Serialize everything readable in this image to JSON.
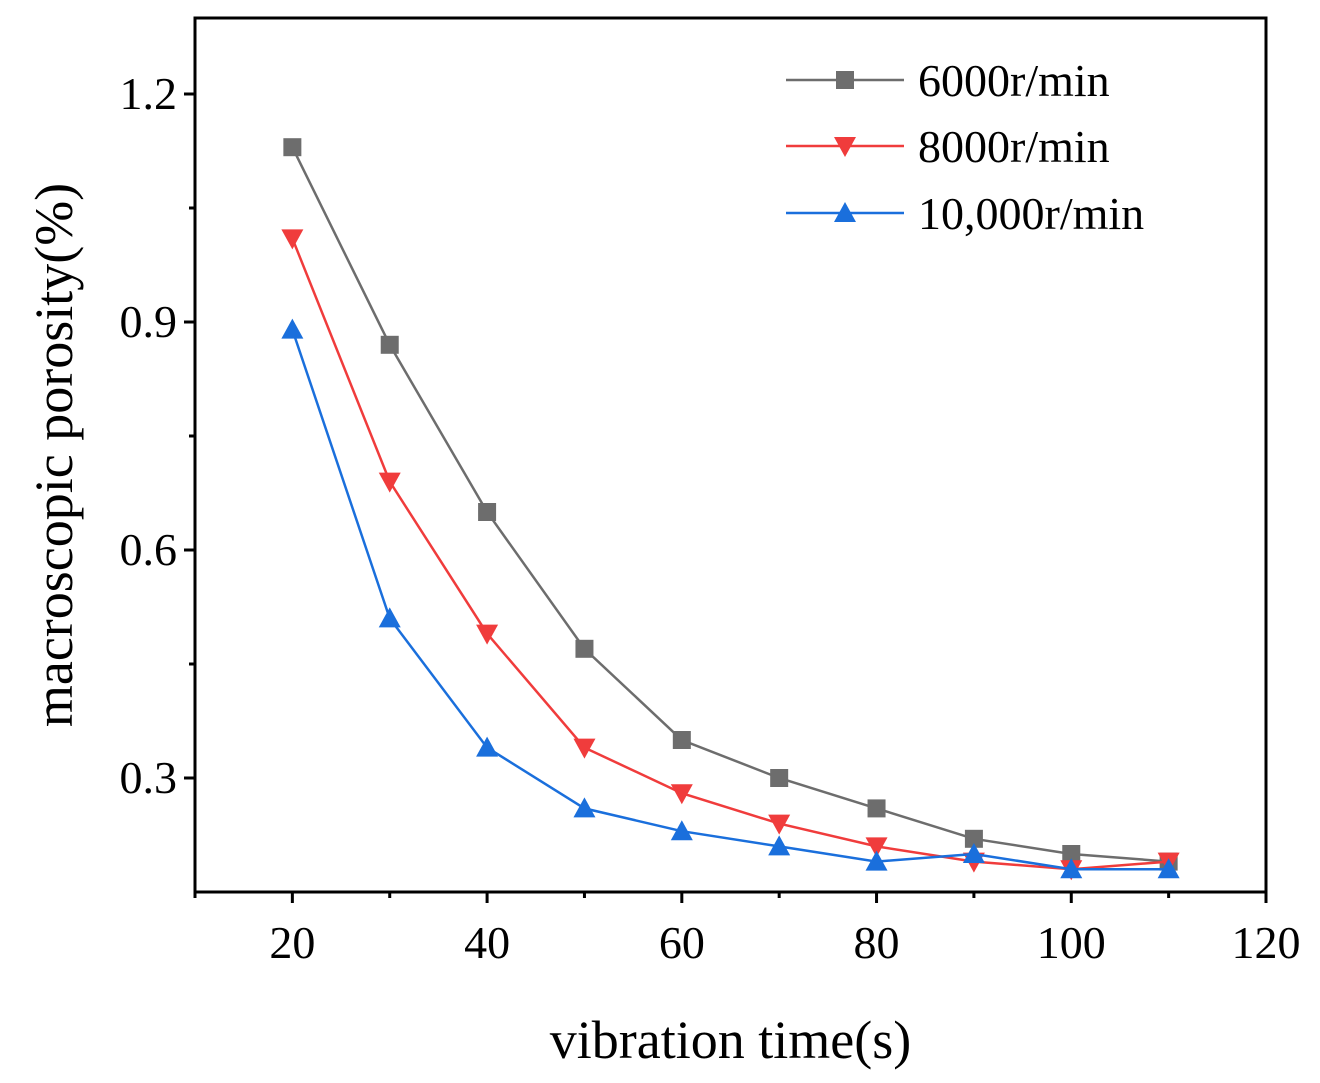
{
  "chart_data": {
    "type": "line",
    "title": "",
    "xlabel": "vibration time(s)",
    "ylabel": "macroscopic porosity(%)",
    "xlim": [
      10,
      120
    ],
    "ylim": [
      0.15,
      1.3
    ],
    "x_ticks": [
      20,
      40,
      60,
      80,
      100,
      120
    ],
    "x_tick_labels": [
      "20",
      "40",
      "60",
      "80",
      "100",
      "120"
    ],
    "y_ticks": [
      0.3,
      0.6,
      0.9,
      1.2
    ],
    "y_tick_labels": [
      "0.3",
      "0.6",
      "0.9",
      "1.2"
    ],
    "legend_position": "top-right",
    "x": [
      20,
      30,
      40,
      50,
      60,
      70,
      80,
      90,
      100,
      110
    ],
    "series": [
      {
        "name": "6000r/min",
        "color": "#6d6d6d",
        "marker": "square",
        "values": [
          1.13,
          0.87,
          0.65,
          0.47,
          0.35,
          0.3,
          0.26,
          0.22,
          0.2,
          0.19
        ]
      },
      {
        "name": "8000r/min",
        "color": "#f03c3c",
        "marker": "triangle-down",
        "values": [
          1.01,
          0.69,
          0.49,
          0.34,
          0.28,
          0.24,
          0.21,
          0.19,
          0.18,
          0.19
        ]
      },
      {
        "name": "10,000r/min",
        "color": "#1a6fdc",
        "marker": "triangle-up",
        "values": [
          0.89,
          0.51,
          0.34,
          0.26,
          0.23,
          0.21,
          0.19,
          0.2,
          0.18,
          0.18
        ]
      }
    ]
  }
}
